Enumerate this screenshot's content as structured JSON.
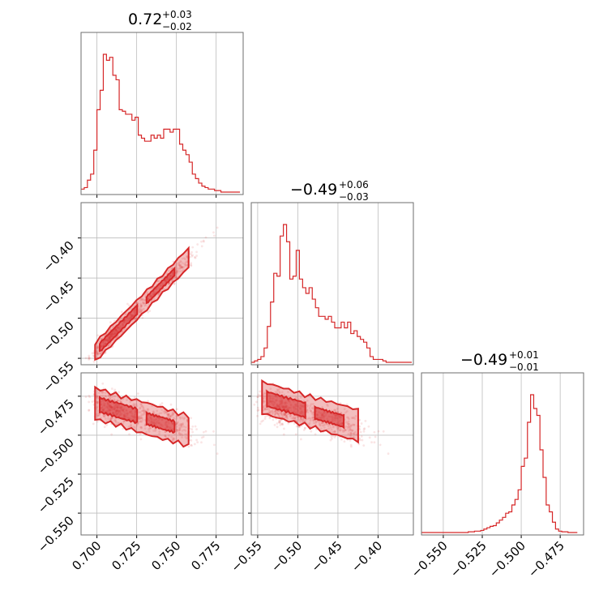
{
  "chart_data": {
    "type": "corner",
    "parameters": [
      {
        "title_value": "0.72",
        "title_plus": "+0.03",
        "title_minus": "−0.02"
      },
      {
        "title_value": "−0.49",
        "title_plus": "+0.06",
        "title_minus": "−0.03"
      },
      {
        "title_value": "−0.49",
        "title_plus": "+0.01",
        "title_minus": "−0.01"
      }
    ],
    "axes": {
      "p0": {
        "range": [
          0.69,
          0.792
        ],
        "ticks": [
          0.7,
          0.725,
          0.75,
          0.775
        ],
        "tick_labels": [
          "0.700",
          "0.725",
          "0.750",
          "0.775"
        ]
      },
      "p1": {
        "range": [
          -0.558,
          -0.356
        ],
        "ticks": [
          -0.55,
          -0.5,
          -0.45,
          -0.4
        ],
        "tick_labels": [
          "−0.55",
          "−0.50",
          "−0.45",
          "−0.40"
        ]
      },
      "p2": {
        "range": [
          -0.564,
          -0.46
        ],
        "ticks": [
          -0.55,
          -0.525,
          -0.5,
          -0.475
        ],
        "tick_labels": [
          "−0.550",
          "−0.525",
          "−0.500",
          "−0.475"
        ]
      }
    },
    "histograms": [
      {
        "param": 0,
        "x": [
          0.69,
          0.692,
          0.694,
          0.696,
          0.698,
          0.7,
          0.702,
          0.704,
          0.706,
          0.708,
          0.71,
          0.712,
          0.714,
          0.716,
          0.718,
          0.72,
          0.722,
          0.724,
          0.726,
          0.728,
          0.73,
          0.732,
          0.734,
          0.736,
          0.738,
          0.74,
          0.742,
          0.744,
          0.746,
          0.748,
          0.75,
          0.752,
          0.754,
          0.756,
          0.758,
          0.76,
          0.762,
          0.764,
          0.766,
          0.768,
          0.77,
          0.772,
          0.774,
          0.776,
          0.778,
          0.78,
          0.782,
          0.784,
          0.786,
          0.788
        ],
        "counts": [
          2,
          3,
          8,
          12,
          28,
          55,
          68,
          92,
          88,
          90,
          78,
          75,
          55,
          54,
          52,
          52,
          48,
          50,
          38,
          36,
          34,
          34,
          38,
          36,
          38,
          36,
          42,
          42,
          40,
          42,
          42,
          32,
          28,
          25,
          20,
          12,
          9,
          6,
          4,
          3,
          2,
          2,
          1,
          1,
          0,
          0,
          0,
          0,
          0,
          0
        ]
      },
      {
        "param": 1,
        "x": [
          -0.558,
          -0.554,
          -0.55,
          -0.546,
          -0.542,
          -0.538,
          -0.534,
          -0.53,
          -0.526,
          -0.522,
          -0.518,
          -0.514,
          -0.51,
          -0.506,
          -0.502,
          -0.498,
          -0.494,
          -0.49,
          -0.486,
          -0.482,
          -0.478,
          -0.474,
          -0.47,
          -0.466,
          -0.462,
          -0.458,
          -0.454,
          -0.45,
          -0.446,
          -0.442,
          -0.438,
          -0.434,
          -0.43,
          -0.426,
          -0.422,
          -0.418,
          -0.414,
          -0.41,
          -0.406,
          -0.402,
          -0.398,
          -0.394,
          -0.39,
          -0.386,
          -0.382,
          -0.378,
          -0.374,
          -0.37,
          -0.366,
          -0.362
        ],
        "counts": [
          0,
          1,
          2,
          4,
          10,
          25,
          42,
          62,
          60,
          88,
          96,
          84,
          58,
          60,
          78,
          58,
          52,
          48,
          52,
          44,
          38,
          32,
          32,
          30,
          32,
          28,
          24,
          24,
          28,
          24,
          28,
          20,
          22,
          18,
          16,
          14,
          10,
          4,
          2,
          2,
          2,
          1,
          0,
          0,
          0,
          0,
          0,
          0,
          0,
          0
        ]
      },
      {
        "param": 2,
        "x": [
          -0.564,
          -0.562,
          -0.56,
          -0.558,
          -0.556,
          -0.554,
          -0.552,
          -0.55,
          -0.548,
          -0.546,
          -0.544,
          -0.542,
          -0.54,
          -0.538,
          -0.536,
          -0.534,
          -0.532,
          -0.53,
          -0.528,
          -0.526,
          -0.524,
          -0.522,
          -0.52,
          -0.518,
          -0.516,
          -0.514,
          -0.512,
          -0.51,
          -0.508,
          -0.506,
          -0.504,
          -0.502,
          -0.5,
          -0.498,
          -0.496,
          -0.494,
          -0.492,
          -0.49,
          -0.488,
          -0.486,
          -0.484,
          -0.482,
          -0.48,
          -0.478,
          -0.476,
          -0.474,
          -0.472,
          -0.47,
          -0.468,
          -0.466
        ],
        "counts": [
          0,
          0,
          0,
          0,
          0,
          0,
          0,
          0,
          0,
          0,
          0,
          0,
          0,
          0,
          0,
          1,
          1,
          2,
          2,
          3,
          5,
          7,
          9,
          10,
          14,
          18,
          22,
          28,
          30,
          40,
          48,
          62,
          96,
          108,
          160,
          200,
          180,
          170,
          120,
          80,
          40,
          30,
          15,
          5,
          2,
          1,
          1,
          0,
          0,
          0
        ]
      }
    ],
    "scatter_2d": [
      {
        "x_param": 0,
        "y_param": 1,
        "relation": "y = -0.55 + 2.0*(x - 0.695)",
        "spread": 0.006
      },
      {
        "x_param": 0,
        "y_param": 2,
        "relation": "y = -0.480 - 0.30*(x - 0.700)",
        "spread": 0.005
      },
      {
        "x_param": 1,
        "y_param": 2,
        "relation": "y = -0.478 - 0.15*(x + 0.530)",
        "spread": 0.005
      }
    ],
    "grid": true,
    "colors": {
      "line": "#d62728",
      "frame": "#6e6e6e",
      "grid": "#bdbdbd"
    }
  }
}
